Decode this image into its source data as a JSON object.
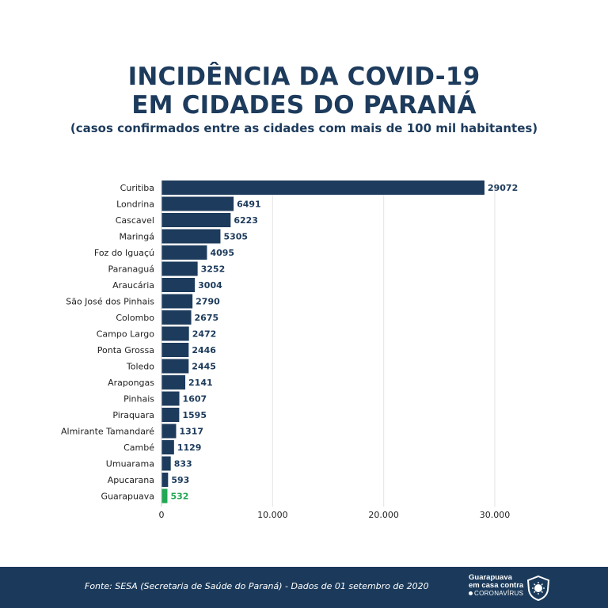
{
  "header": {
    "title_line1": "INCIDÊNCIA DA COVID-19",
    "title_line2": "EM CIDADES DO PARANÁ",
    "subtitle": "(casos confirmados entre as cidades com mais de 100 mil habitantes)"
  },
  "chart_data": {
    "type": "bar",
    "orientation": "horizontal",
    "categories": [
      "Curitiba",
      "Londrina",
      "Cascavel",
      "Maringá",
      "Foz do Iguaçú",
      "Paranaguá",
      "Araucária",
      "São José dos Pinhais",
      "Colombo",
      "Campo Largo",
      "Ponta Grossa",
      "Toledo",
      "Arapongas",
      "Pinhais",
      "Piraquara",
      "Almirante Tamandaré",
      "Cambé",
      "Umuarama",
      "Apucarana",
      "Guarapuava"
    ],
    "values": [
      29072,
      6491,
      6223,
      5305,
      4095,
      3252,
      3004,
      2790,
      2675,
      2472,
      2446,
      2445,
      2141,
      1607,
      1595,
      1317,
      1129,
      833,
      593,
      532
    ],
    "x_ticks": [
      0,
      10000,
      20000,
      30000
    ],
    "x_tick_labels": [
      "0",
      "10.000",
      "20.000",
      "30.000"
    ],
    "xlim": [
      0,
      30000
    ],
    "grid": "vertical",
    "highlight_category": "Guarapuava",
    "colors": {
      "bar": "#1d3b5c",
      "highlight": "#21a852",
      "label": "#1d3b5c",
      "grid": "#e3e3e3"
    }
  },
  "footer": {
    "source": "Fonte: SESA (Secretaria de Saúde do Paraná) - Dados de 01 setembro de 2020",
    "brand_line1": "Guarapuava",
    "brand_line2": "em casa contra",
    "brand_line3": "CORONAVÍRUS",
    "background": "#1b3a5b"
  }
}
